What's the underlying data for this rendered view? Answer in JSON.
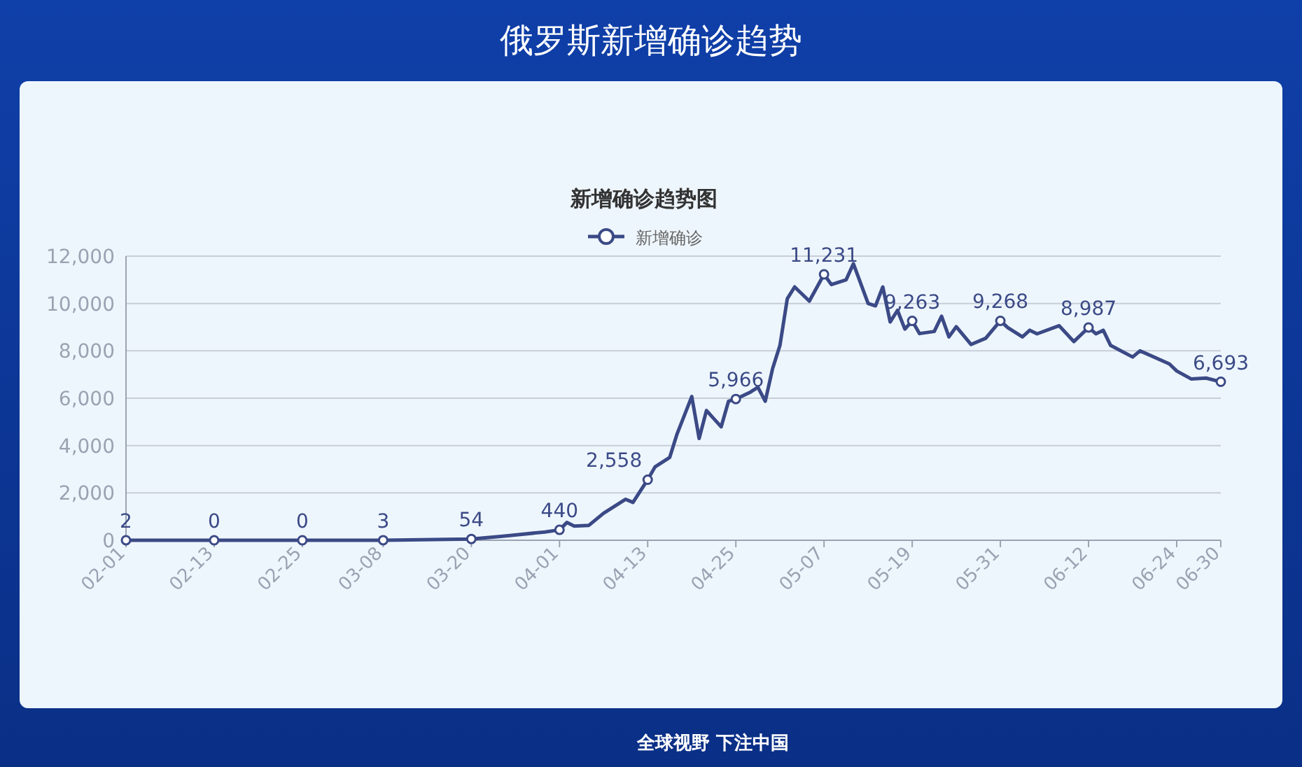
{
  "chart_data": {
    "type": "line",
    "title": "俄罗斯新增确诊趋势",
    "subtitle": "新增确诊趋势图",
    "annotations": [
      "全球视野 下注中国"
    ],
    "x": [
      "--02-01",
      "--02-13",
      "--02-25",
      "--03-08",
      "--03-20",
      "--03-24",
      "--03-30",
      "--04-01",
      "--04-02",
      "--04-03",
      "--04-05",
      "--04-07",
      "--04-10",
      "--04-11",
      "--04-13",
      "--04-14",
      "--04-16",
      "--04-17",
      "--04-19",
      "--04-20",
      "--04-21",
      "--04-23",
      "--04-24",
      "--04-25",
      "--04-27",
      "--04-28",
      "--04-29",
      "--04-30",
      "--05-01",
      "--05-02",
      "--05-03",
      "--05-05",
      "--05-07",
      "--05-08",
      "--05-10",
      "--05-11",
      "--05-13",
      "--05-14",
      "--05-15",
      "--05-16",
      "--05-17",
      "--05-18",
      "--05-19",
      "--05-20",
      "--05-22",
      "--05-23",
      "--05-24",
      "--05-25",
      "--05-27",
      "--05-29",
      "--05-31",
      "--06-01",
      "--06-03",
      "--06-04",
      "--06-05",
      "--06-08",
      "--06-10",
      "--06-12",
      "--06-13",
      "--06-14",
      "--06-15",
      "--06-18",
      "--06-19",
      "--06-23",
      "--06-24",
      "--06-26",
      "--06-28",
      "--06-30"
    ],
    "series": [
      {
        "name": "新增确诊",
        "color": "#3b4a86",
        "values": [
          2,
          0,
          0,
          3,
          54,
          160,
          350,
          440,
          750,
          600,
          630,
          1140,
          1730,
          1600,
          2558,
          3100,
          3500,
          4490,
          6070,
          4300,
          5480,
          4790,
          5870,
          5966,
          6260,
          6460,
          5870,
          7250,
          8230,
          10200,
          10700,
          10100,
          11231,
          10800,
          11000,
          11680,
          10000,
          9900,
          10700,
          9220,
          9710,
          8920,
          9263,
          8730,
          8820,
          9460,
          8590,
          9020,
          8270,
          8530,
          9268,
          8980,
          8590,
          8870,
          8720,
          9060,
          8390,
          8987,
          8720,
          8870,
          8230,
          7740,
          8000,
          7450,
          7150,
          6810,
          6850,
          6693
        ],
        "value_labels": [
          "2",
          "0",
          "0",
          "3",
          "54",
          null,
          null,
          "440",
          null,
          null,
          null,
          null,
          null,
          null,
          "2,558",
          null,
          null,
          null,
          null,
          null,
          null,
          null,
          null,
          "5,966",
          null,
          null,
          null,
          null,
          null,
          null,
          null,
          null,
          "11,231",
          null,
          null,
          null,
          null,
          null,
          null,
          null,
          null,
          null,
          "9,263",
          null,
          null,
          null,
          null,
          null,
          null,
          null,
          "9,268",
          null,
          null,
          null,
          null,
          null,
          null,
          "8,987",
          null,
          null,
          null,
          null,
          null,
          null,
          null,
          null,
          null,
          "6,693"
        ]
      }
    ],
    "xlim": [
      "--02-01",
      "--06-30"
    ],
    "xticks": [
      {
        "value": "--02-01",
        "label": "02-01"
      },
      {
        "value": "--02-13",
        "label": "02-13"
      },
      {
        "value": "--02-25",
        "label": "02-25"
      },
      {
        "value": "--03-08",
        "label": "03-08"
      },
      {
        "value": "--03-20",
        "label": "03-20"
      },
      {
        "value": "--04-01",
        "label": "04-01"
      },
      {
        "value": "--04-13",
        "label": "04-13"
      },
      {
        "value": "--04-25",
        "label": "04-25"
      },
      {
        "value": "--05-07",
        "label": "05-07"
      },
      {
        "value": "--05-19",
        "label": "05-19"
      },
      {
        "value": "--05-31",
        "label": "05-31"
      },
      {
        "value": "--06-12",
        "label": "06-12"
      },
      {
        "value": "--06-24",
        "label": "06-24"
      },
      {
        "value": "--06-30",
        "label": "06-30"
      }
    ],
    "ylim": [
      0,
      12000
    ],
    "yticks": [
      0,
      {
        "value": 2000,
        "label": "2,000"
      },
      {
        "value": 4000,
        "label": "4,000"
      },
      {
        "value": 6000,
        "label": "6,000"
      },
      {
        "value": 8000,
        "label": "8,000"
      },
      {
        "value": 10000,
        "label": "10,000"
      },
      {
        "value": 12000,
        "label": "12,000"
      }
    ],
    "grid": "y",
    "legend": "top",
    "line_style": "solid"
  }
}
